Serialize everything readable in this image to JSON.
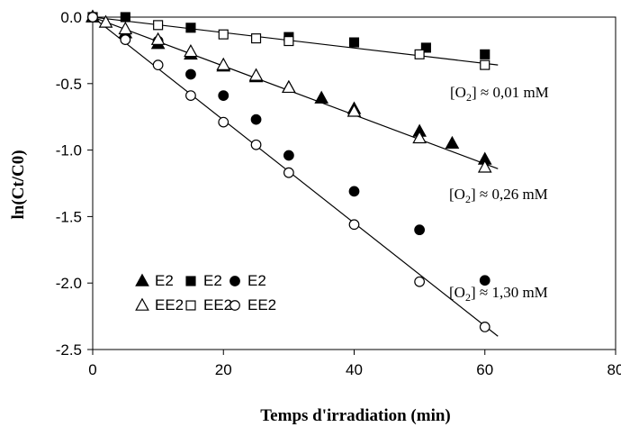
{
  "chart_data": {
    "type": "scatter",
    "title": "",
    "xlabel": "Temps d'irradiation (min)",
    "ylabel": "ln(Ct/C0)",
    "xlim": [
      0,
      80
    ],
    "ylim": [
      -2.5,
      0.0
    ],
    "xticks": [
      "0",
      "20",
      "40",
      "60",
      "80"
    ],
    "yticks": [
      "0.0",
      "-0.5",
      "-1.0",
      "-1.5",
      "-2.0",
      "-2.5"
    ],
    "grid": false,
    "legend_position": "bottom-left",
    "series": [
      {
        "name": "E2",
        "marker": "triangle",
        "fill": "filled",
        "x": [
          0,
          5,
          10,
          15,
          20,
          25,
          30,
          35,
          40,
          50,
          55,
          60
        ],
        "y": [
          0.0,
          -0.12,
          -0.2,
          -0.28,
          -0.37,
          -0.45,
          -0.53,
          -0.61,
          -0.69,
          -0.86,
          -0.95,
          -1.07
        ]
      },
      {
        "name": "E2",
        "marker": "square",
        "fill": "filled",
        "x": [
          0,
          5,
          15,
          30,
          40,
          51,
          60
        ],
        "y": [
          0.0,
          0.0,
          -0.08,
          -0.15,
          -0.19,
          -0.23,
          -0.28
        ]
      },
      {
        "name": "E2",
        "marker": "circle",
        "fill": "filled",
        "x": [
          0,
          5,
          10,
          15,
          20,
          25,
          30,
          40,
          50,
          60
        ],
        "y": [
          0.0,
          -0.12,
          -0.18,
          -0.43,
          -0.59,
          -0.77,
          -1.04,
          -1.31,
          -1.6,
          -1.98
        ]
      },
      {
        "name": "EE2",
        "marker": "triangle",
        "fill": "open",
        "x": [
          0,
          2,
          5,
          10,
          15,
          20,
          25,
          30,
          40,
          50,
          60
        ],
        "y": [
          0.0,
          -0.04,
          -0.09,
          -0.17,
          -0.26,
          -0.36,
          -0.44,
          -0.53,
          -0.71,
          -0.91,
          -1.13
        ]
      },
      {
        "name": "EE2",
        "marker": "square",
        "fill": "open",
        "x": [
          0,
          10,
          20,
          25,
          30,
          50,
          60
        ],
        "y": [
          0.0,
          -0.06,
          -0.13,
          -0.16,
          -0.18,
          -0.28,
          -0.36
        ]
      },
      {
        "name": "EE2",
        "marker": "circle",
        "fill": "open",
        "x": [
          0,
          5,
          10,
          15,
          20,
          25,
          30,
          40,
          50,
          60
        ],
        "y": [
          0.0,
          -0.17,
          -0.36,
          -0.59,
          -0.79,
          -0.96,
          -1.17,
          -1.56,
          -1.99,
          -2.33
        ]
      }
    ],
    "fit_lines": [
      {
        "x": [
          0,
          62
        ],
        "y": [
          0.0,
          -0.36
        ]
      },
      {
        "x": [
          0,
          62
        ],
        "y": [
          0.0,
          -1.14
        ]
      },
      {
        "x": [
          0,
          62
        ],
        "y": [
          0.0,
          -2.4
        ]
      }
    ],
    "annotations": [
      {
        "prefix": "[O",
        "sub": "2",
        "suffix": "] ≈  0,01 mM"
      },
      {
        "prefix": "[O",
        "sub": "2",
        "suffix": "] ≈ 0,26 mM"
      },
      {
        "prefix": "[O",
        "sub": "2",
        "suffix": "] ≈ 1,30 mM"
      }
    ]
  }
}
